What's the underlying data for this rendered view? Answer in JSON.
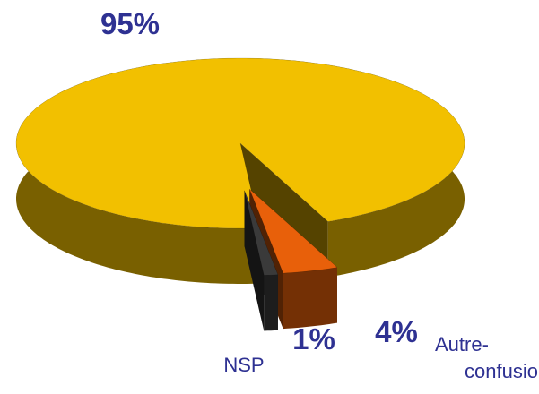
{
  "chart_data": {
    "type": "pie",
    "categories": [
      null,
      "Autre-confusion",
      "NSP"
    ],
    "values": [
      95,
      4,
      1
    ],
    "value_labels": [
      "95%",
      "4%",
      "1%"
    ],
    "colors": [
      "#f2c000",
      "#e8600a",
      "#3a3a3a"
    ]
  }
}
